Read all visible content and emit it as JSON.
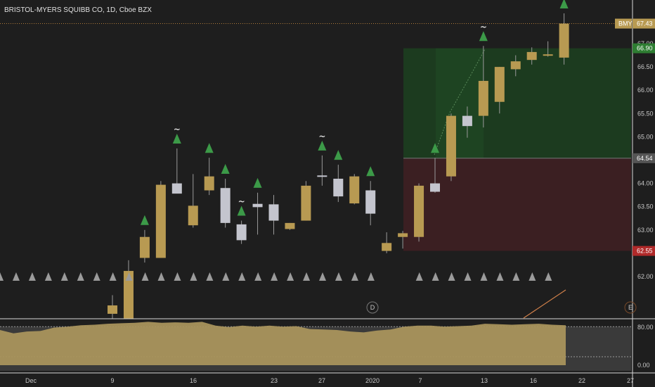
{
  "header": {
    "title": "BRISTOL-MYERS SQUIBB CO, 1D, Cboe BZX"
  },
  "colors": {
    "background": "#1e1e1e",
    "up_candle": "#b89a52",
    "down_candle": "#c4c5ce",
    "buy_signal": "#3c9a48",
    "neutral_marker": "#9b9b9b",
    "target_zone": "#1c3b1f",
    "stop_zone": "#3b1f22",
    "oscillator_fill": "#a9935c"
  },
  "price_tags": {
    "symbol": "BMY",
    "last": "67.43",
    "target": "66.90",
    "entry": "64.54",
    "stop": "62.55"
  },
  "markers": {
    "dividend_label": "D",
    "earnings_label": "E"
  },
  "chart_data": [
    {
      "type": "candlestick",
      "title": "BRISTOL-MYERS SQUIBB CO, 1D, Cboe BZX",
      "y_axis_ticks": [
        "62.00",
        "62.50",
        "63.00",
        "63.50",
        "64.00",
        "64.50",
        "65.00",
        "65.50",
        "66.00",
        "66.50",
        "67.00"
      ],
      "ylim": [
        61.1,
        67.95
      ],
      "x_ticks": [
        "Dec",
        "9",
        "16",
        "23",
        "27",
        "2020",
        "7",
        "13",
        "16",
        "22",
        "27"
      ],
      "candles": [
        {
          "open": 61.2,
          "high": 61.6,
          "low": 61.1,
          "close": 61.38
        },
        {
          "open": 61.1,
          "high": 62.35,
          "low": 61.1,
          "close": 62.12
        },
        {
          "open": 62.4,
          "high": 63.0,
          "low": 62.3,
          "close": 62.85
        },
        {
          "open": 62.4,
          "high": 64.05,
          "low": 62.4,
          "close": 63.97
        },
        {
          "open": 64.0,
          "high": 64.75,
          "low": 63.8,
          "close": 63.78
        },
        {
          "open": 63.1,
          "high": 64.2,
          "low": 63.05,
          "close": 63.52
        },
        {
          "open": 63.85,
          "high": 64.55,
          "low": 63.75,
          "close": 64.15
        },
        {
          "open": 63.9,
          "high": 64.1,
          "low": 63.05,
          "close": 63.15
        },
        {
          "open": 63.12,
          "high": 63.2,
          "low": 62.7,
          "close": 62.78
        },
        {
          "open": 63.56,
          "high": 63.8,
          "low": 62.9,
          "close": 63.49
        },
        {
          "open": 63.55,
          "high": 63.75,
          "low": 62.9,
          "close": 63.2
        },
        {
          "open": 63.02,
          "high": 63.15,
          "low": 63.0,
          "close": 63.15
        },
        {
          "open": 63.2,
          "high": 64.05,
          "low": 63.2,
          "close": 63.95
        },
        {
          "open": 64.17,
          "high": 64.6,
          "low": 63.95,
          "close": 64.15
        },
        {
          "open": 64.1,
          "high": 64.4,
          "low": 63.6,
          "close": 63.72
        },
        {
          "open": 63.57,
          "high": 64.2,
          "low": 63.55,
          "close": 64.15
        },
        {
          "open": 63.85,
          "high": 64.05,
          "low": 63.1,
          "close": 63.35
        },
        {
          "open": 62.55,
          "high": 62.95,
          "low": 62.5,
          "close": 62.72
        },
        {
          "open": 62.85,
          "high": 62.98,
          "low": 62.6,
          "close": 62.93
        },
        {
          "open": 62.85,
          "high": 64.0,
          "low": 62.75,
          "close": 63.95
        },
        {
          "open": 64.0,
          "high": 64.55,
          "low": 63.8,
          "close": 63.82
        },
        {
          "open": 64.15,
          "high": 65.5,
          "low": 64.05,
          "close": 65.45
        },
        {
          "open": 65.45,
          "high": 65.65,
          "low": 64.98,
          "close": 65.23
        },
        {
          "open": 65.45,
          "high": 66.95,
          "low": 65.2,
          "close": 66.2
        },
        {
          "open": 65.75,
          "high": 66.5,
          "low": 65.5,
          "close": 66.5
        },
        {
          "open": 66.45,
          "high": 66.75,
          "low": 66.3,
          "close": 66.62
        },
        {
          "open": 66.65,
          "high": 66.92,
          "low": 66.55,
          "close": 66.82
        },
        {
          "open": 66.77,
          "high": 67.05,
          "low": 66.72,
          "close": 66.77
        },
        {
          "open": 66.7,
          "high": 67.65,
          "low": 66.55,
          "close": 67.43
        }
      ],
      "candle_slots": [
        0,
        1,
        2,
        3,
        4,
        5,
        6,
        7,
        8,
        9,
        10,
        11,
        12,
        13,
        14,
        15,
        16,
        17,
        18,
        19,
        20,
        21,
        22,
        23,
        24,
        25,
        26,
        27,
        28
      ],
      "buy_signals": [
        {
          "slot": 2,
          "tilde": false
        },
        {
          "slot": 4,
          "tilde": true
        },
        {
          "slot": 6,
          "tilde": false
        },
        {
          "slot": 7,
          "tilde": false
        },
        {
          "slot": 8,
          "tilde": true
        },
        {
          "slot": 9,
          "tilde": false
        },
        {
          "slot": 13,
          "tilde": true
        },
        {
          "slot": 14,
          "tilde": false
        },
        {
          "slot": 16,
          "tilde": false
        },
        {
          "slot": 20,
          "tilde": false
        },
        {
          "slot": 23,
          "tilde": true
        },
        {
          "slot": 28,
          "tilde": true
        }
      ],
      "horizontal_line": 67.43,
      "target_zone": {
        "from": 64.54,
        "to": 66.9
      },
      "stop_zone": {
        "from": 62.55,
        "to": 64.54
      }
    },
    {
      "type": "area",
      "title": "",
      "y_axis_ticks": [
        "80.00",
        "0.00"
      ],
      "ylim": [
        0,
        100
      ],
      "values": [
        73,
        66,
        70,
        71,
        78,
        80,
        83,
        84,
        86,
        87,
        88,
        90,
        88,
        89,
        88,
        90,
        82,
        79,
        82,
        80,
        82,
        80,
        81,
        75,
        74,
        73,
        70,
        68,
        72,
        74,
        80,
        82,
        82,
        80,
        81,
        82,
        86,
        85,
        84,
        85,
        86,
        84,
        83
      ]
    }
  ]
}
